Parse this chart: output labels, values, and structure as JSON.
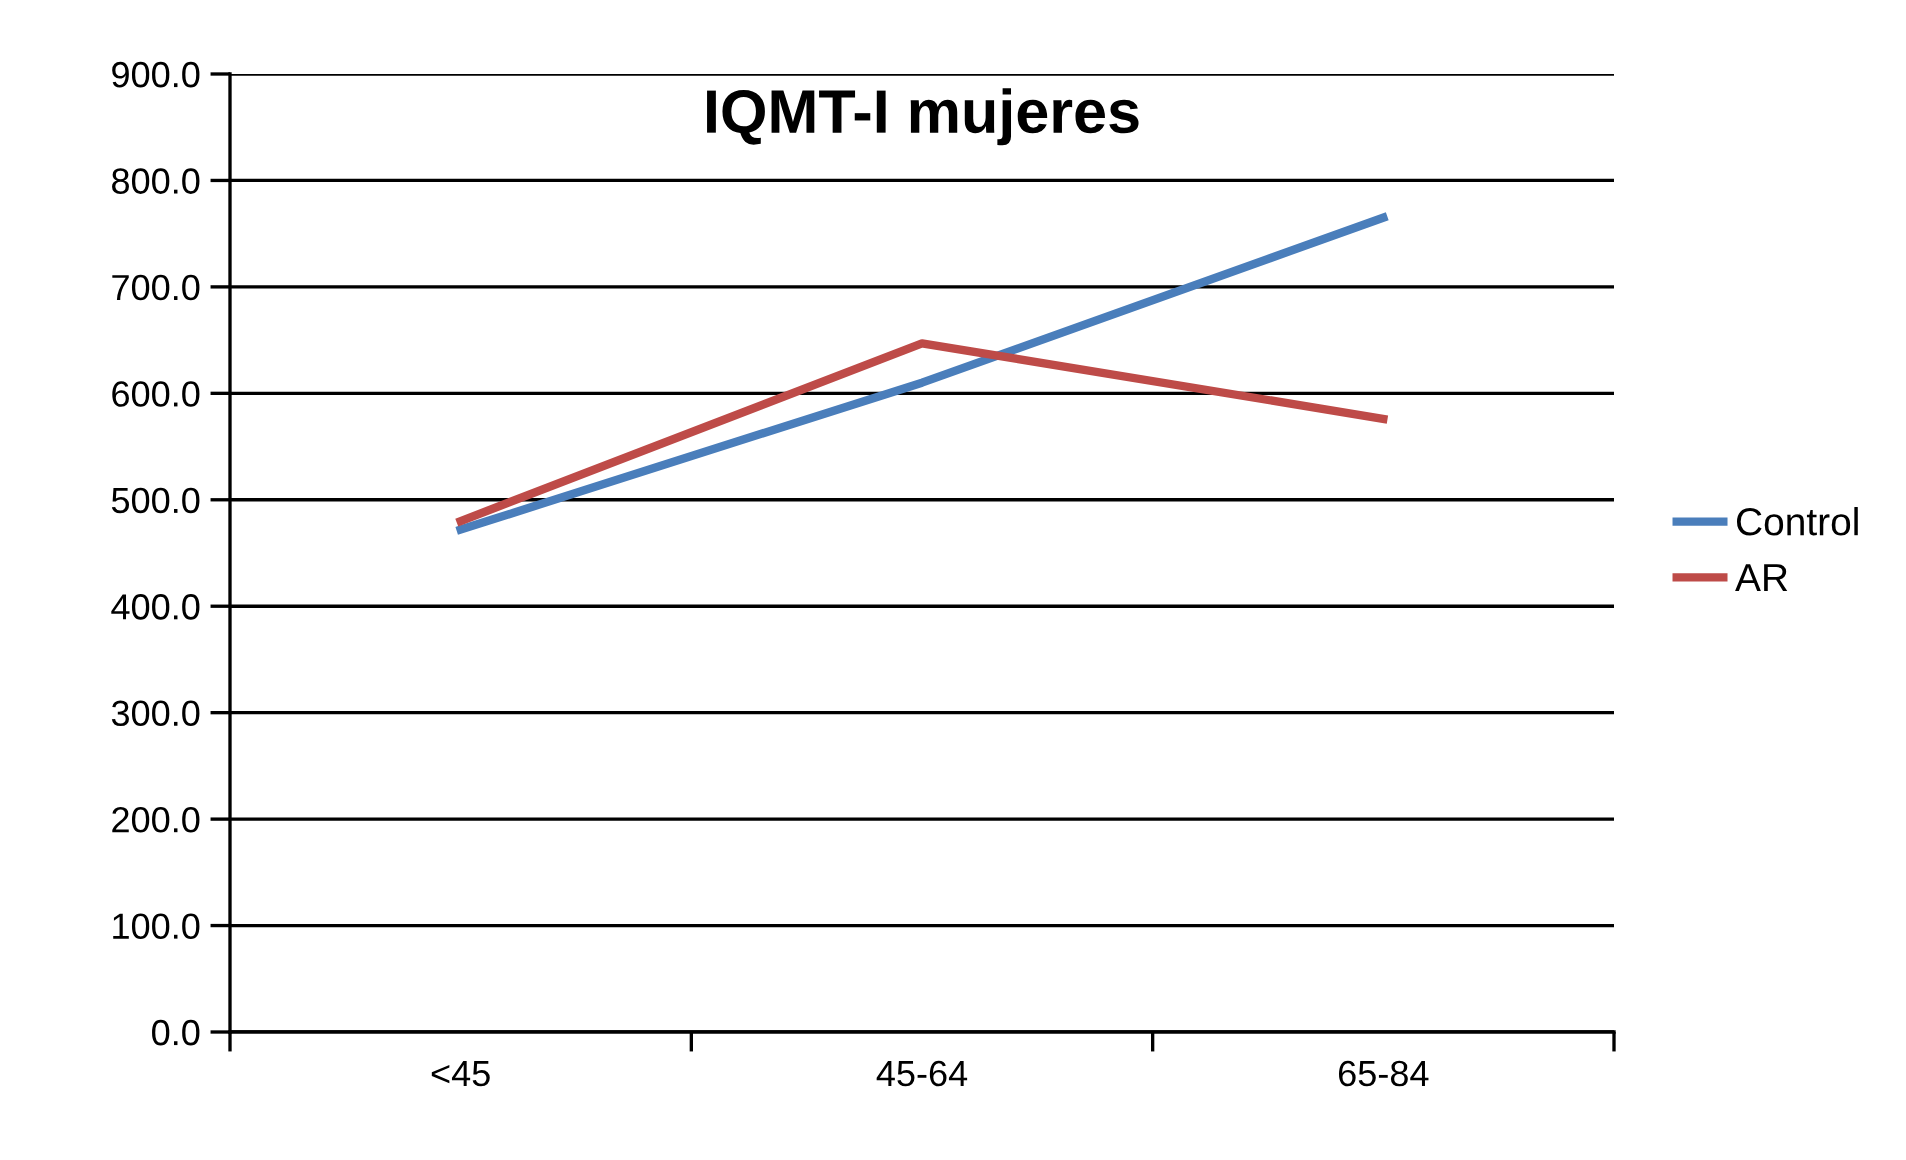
{
  "chart_data": {
    "type": "line",
    "title": "IQMT-I mujeres",
    "categories": [
      "<45",
      "45-64",
      "65-84"
    ],
    "series": [
      {
        "name": "Control",
        "color": "#4a7ebb",
        "values": [
          472,
          610,
          765
        ]
      },
      {
        "name": "AR",
        "color": "#be4b48",
        "values": [
          480,
          647,
          576
        ]
      }
    ],
    "ylim": [
      0,
      900
    ],
    "yticks": [
      {
        "value": 0,
        "label": "0.0"
      },
      {
        "value": 100,
        "label": "100.0"
      },
      {
        "value": 200,
        "label": "200.0"
      },
      {
        "value": 300,
        "label": "300.0"
      },
      {
        "value": 400,
        "label": "400.0"
      },
      {
        "value": 500,
        "label": "500.0"
      },
      {
        "value": 600,
        "label": "600.0"
      },
      {
        "value": 700,
        "label": "700.0"
      },
      {
        "value": 800,
        "label": "800.0"
      },
      {
        "value": 900,
        "label": "900.0"
      }
    ],
    "grid": "y",
    "legend": "right",
    "marker": "none",
    "line_style": "solid"
  }
}
